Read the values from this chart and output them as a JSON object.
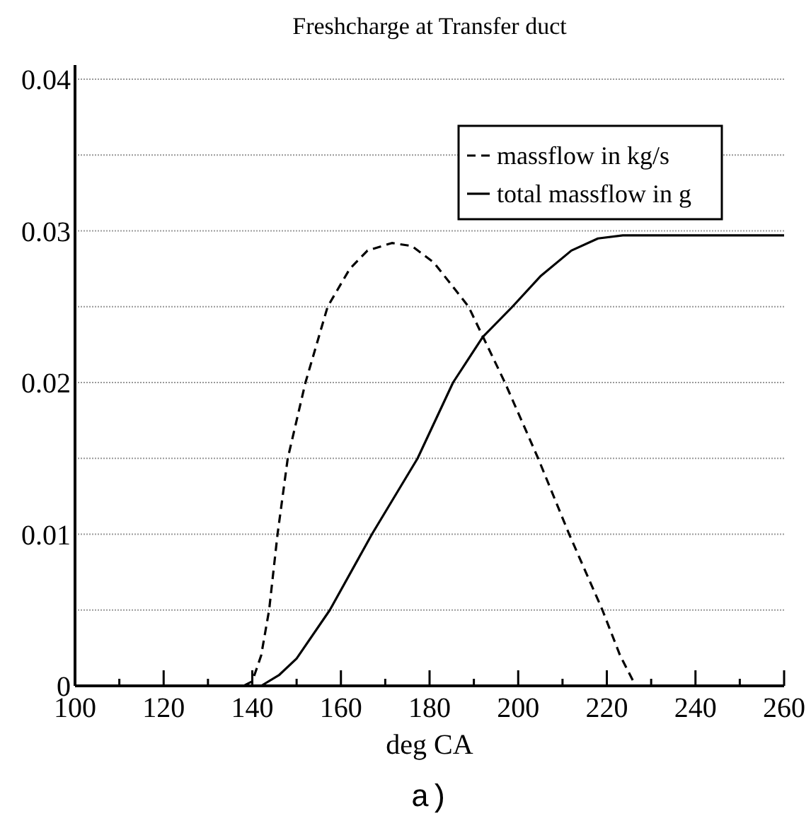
{
  "chart_data": {
    "type": "line",
    "title": "Freshcharge at Transfer duct",
    "xlabel": "deg CA",
    "annotations": [
      "a)"
    ],
    "xlim": [
      100,
      260
    ],
    "xticks": [
      100,
      {
        "value": 110,
        "label": null
      },
      120,
      {
        "value": 130,
        "label": null
      },
      140,
      {
        "value": 150,
        "label": null
      },
      160,
      {
        "value": 170,
        "label": null
      },
      180,
      {
        "value": 190,
        "label": null
      },
      200,
      {
        "value": 210,
        "label": null
      },
      220,
      {
        "value": 230,
        "label": null
      },
      240,
      {
        "value": 250,
        "label": null
      },
      260
    ],
    "ylim": [
      0,
      0.04
    ],
    "yticks": [
      0,
      {
        "value": 0.005,
        "label": null
      },
      0.01,
      {
        "value": 0.015,
        "label": null
      },
      0.02,
      {
        "value": 0.025,
        "label": null
      },
      0.03,
      {
        "value": 0.035,
        "label": null
      },
      0.04
    ],
    "grid": "y",
    "legend": "top right",
    "series": [
      {
        "name": "massflow in kg/s",
        "color": "#000000",
        "line_style": "dashed",
        "x": [
          100,
          138,
          140,
          142,
          143.8,
          145.7,
          148,
          152,
          157,
          162,
          166,
          171.5,
          176,
          181,
          188.8,
          197,
          204.5,
          211.5,
          219,
          223,
          226.5,
          260
        ],
        "values": [
          0,
          0,
          0.0003,
          0.002,
          0.005,
          0.01,
          0.015,
          0.02,
          0.025,
          0.0275,
          0.0287,
          0.0292,
          0.029,
          0.0279,
          0.025,
          0.02,
          0.015,
          0.01,
          0.005,
          0.002,
          0,
          0
        ]
      },
      {
        "name": "total massflow in g",
        "color": "#000000",
        "line_style": "solid",
        "x": [
          100,
          142,
          146,
          150,
          157.5,
          167,
          177.3,
          185.3,
          192,
          198.7,
          205,
          212,
          218,
          223.6,
          260
        ],
        "values": [
          0,
          0,
          0.0007,
          0.0018,
          0.005,
          0.01,
          0.015,
          0.02,
          0.023,
          0.025,
          0.027,
          0.0287,
          0.0295,
          0.0297,
          0.0297
        ]
      }
    ]
  }
}
